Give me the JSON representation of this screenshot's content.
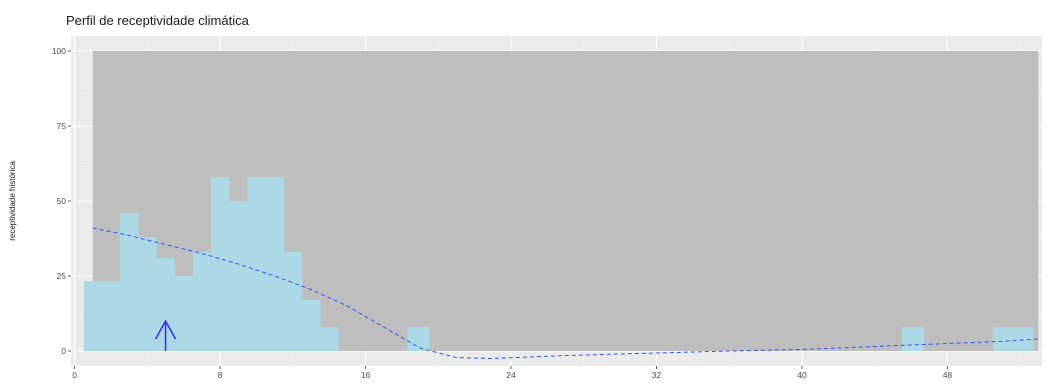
{
  "chart_data": {
    "type": "bar",
    "title": "Perfil de receptividade climática",
    "xlabel": "",
    "ylabel": "receptividade histórica",
    "xlim": [
      -0.2,
      53.2
    ],
    "ylim": [
      -5,
      105
    ],
    "x_ticks": [
      0,
      8,
      16,
      24,
      32,
      40,
      48
    ],
    "y_ticks": [
      0,
      25,
      50,
      75,
      100
    ],
    "grid": true,
    "background_band": {
      "x_start": 1,
      "x_end": 53,
      "y_top": 100,
      "color": "#bebebe"
    },
    "bar_color": "#add8e6",
    "bins": [
      {
        "x0": 0.5,
        "x1": 1.5,
        "value": 23.3
      },
      {
        "x0": 1.5,
        "x1": 2.5,
        "value": 23.3
      },
      {
        "x0": 2.5,
        "x1": 3.5,
        "value": 46
      },
      {
        "x0": 3.5,
        "x1": 4.5,
        "value": 38
      },
      {
        "x0": 4.5,
        "x1": 5.5,
        "value": 31
      },
      {
        "x0": 5.5,
        "x1": 6.5,
        "value": 25
      },
      {
        "x0": 6.5,
        "x1": 7.5,
        "value": 33
      },
      {
        "x0": 7.5,
        "x1": 8.5,
        "value": 58
      },
      {
        "x0": 8.5,
        "x1": 9.5,
        "value": 50
      },
      {
        "x0": 9.5,
        "x1": 10.5,
        "value": 58
      },
      {
        "x0": 10.5,
        "x1": 11.5,
        "value": 58
      },
      {
        "x0": 11.5,
        "x1": 12.5,
        "value": 33
      },
      {
        "x0": 12.5,
        "x1": 13.5,
        "value": 17
      },
      {
        "x0": 13.5,
        "x1": 14.5,
        "value": 8
      },
      {
        "x0": 18.3,
        "x1": 19.5,
        "value": 8
      },
      {
        "x0": 45.5,
        "x1": 46.7,
        "value": 8
      },
      {
        "x0": 50.5,
        "x1": 52.7,
        "value": 8
      }
    ],
    "trend_line": {
      "style": "dashed",
      "color": "#3355ff",
      "x": [
        1,
        3,
        5,
        7,
        9,
        11,
        13,
        15,
        17,
        19,
        21,
        23,
        25,
        27,
        30,
        33,
        36,
        40,
        44,
        48,
        51,
        53
      ],
      "y": [
        41,
        38.5,
        35.5,
        32.5,
        29,
        25,
        20.5,
        15,
        8,
        1,
        -2.2,
        -2.5,
        -2,
        -1.5,
        -1,
        -0.5,
        0,
        0.5,
        1.5,
        2.5,
        3.2,
        4
      ]
    },
    "marker": {
      "x": 5,
      "y_from": 0,
      "y_to": 10,
      "color": "#3333ff",
      "shape": "up-arrow"
    }
  }
}
